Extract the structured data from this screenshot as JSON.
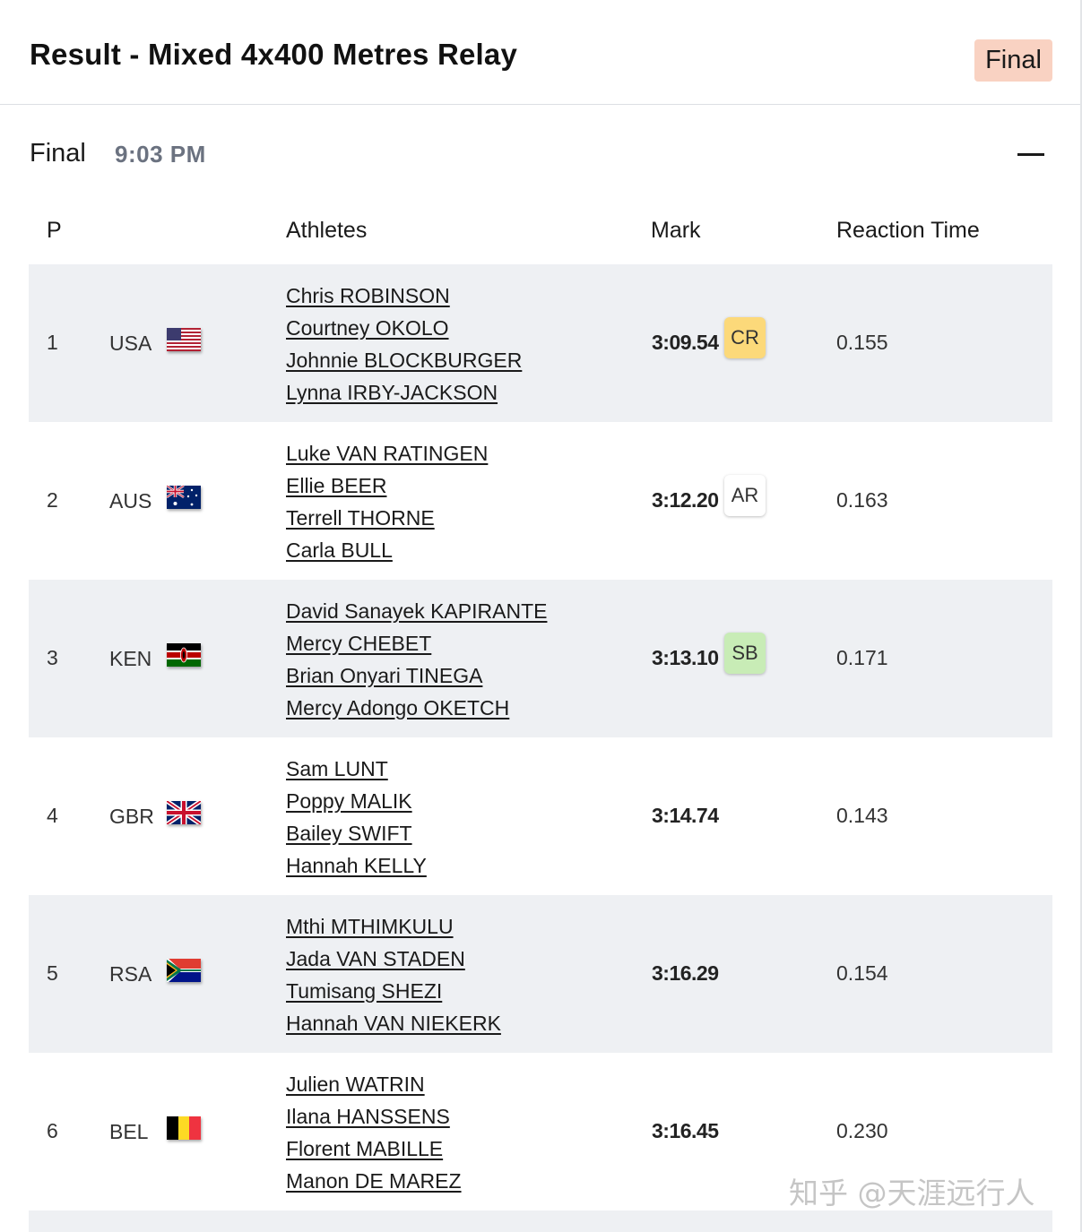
{
  "header": {
    "title": "Result - Mixed 4x400 Metres Relay",
    "badge": "Final"
  },
  "section": {
    "title": "Final",
    "time": "9:03 PM"
  },
  "columns": {
    "position": "P",
    "athletes": "Athletes",
    "mark": "Mark",
    "reaction": "Reaction Time"
  },
  "results": [
    {
      "pos": "1",
      "country": "USA",
      "flag": "usa-flag-icon",
      "athletes": [
        "Chris ROBINSON",
        "Courtney OKOLO",
        "Johnnie BLOCKBURGER",
        "Lynna IRBY-JACKSON"
      ],
      "mark": "3:09.54",
      "record": "CR",
      "record_color": "#fcd97a",
      "reaction": "0.155"
    },
    {
      "pos": "2",
      "country": "AUS",
      "flag": "aus-flag-icon",
      "athletes": [
        "Luke VAN RATINGEN",
        "Ellie BEER",
        "Terrell THORNE",
        "Carla BULL"
      ],
      "mark": "3:12.20",
      "record": "AR",
      "record_color": "#ffffff",
      "reaction": "0.163"
    },
    {
      "pos": "3",
      "country": "KEN",
      "flag": "ken-flag-icon",
      "athletes": [
        "David Sanayek KAPIRANTE",
        "Mercy CHEBET",
        "Brian Onyari TINEGA",
        "Mercy Adongo OKETCH"
      ],
      "mark": "3:13.10",
      "record": "SB",
      "record_color": "#c8ecb6",
      "reaction": "0.171"
    },
    {
      "pos": "4",
      "country": "GBR",
      "flag": "gbr-flag-icon",
      "athletes": [
        "Sam LUNT",
        "Poppy MALIK",
        "Bailey SWIFT",
        "Hannah KELLY"
      ],
      "mark": "3:14.74",
      "record": "",
      "reaction": "0.143"
    },
    {
      "pos": "5",
      "country": "RSA",
      "flag": "rsa-flag-icon",
      "athletes": [
        "Mthi MTHIMKULU",
        "Jada VAN STADEN",
        "Tumisang SHEZI",
        "Hannah VAN NIEKERK"
      ],
      "mark": "3:16.29",
      "record": "",
      "reaction": "0.154"
    },
    {
      "pos": "6",
      "country": "BEL",
      "flag": "bel-flag-icon",
      "athletes": [
        "Julien WATRIN",
        "Ilana HANSSENS",
        "Florent MABILLE",
        "Manon DE MAREZ"
      ],
      "mark": "3:16.45",
      "record": "",
      "reaction": "0.230"
    }
  ],
  "watermark": "知乎 @天涯远行人"
}
